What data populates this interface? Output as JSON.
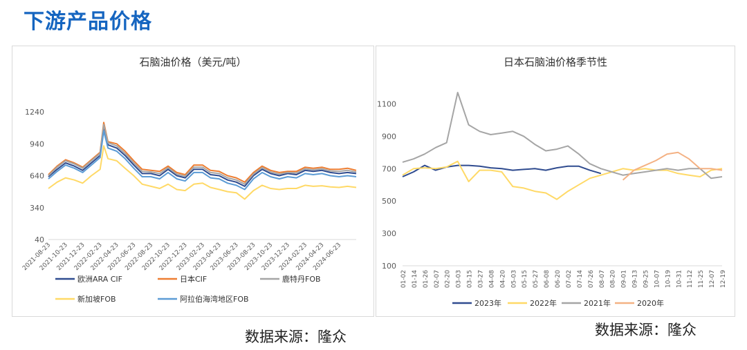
{
  "page": {
    "heading": "下游产品价格"
  },
  "sources": {
    "left": "数据来源：隆众",
    "right": "数据来源：隆众"
  },
  "chart_data": [
    {
      "type": "line",
      "title": "石脑油价格（美元/吨）",
      "xlabel": "",
      "ylabel": "",
      "ylim": [
        40,
        1240
      ],
      "yticks": [
        40,
        340,
        640,
        940,
        1240
      ],
      "xticks": [
        "2021-08-23",
        "2021-10-23",
        "2021-12-23",
        "2022-02-23",
        "2022-04-23",
        "2022-06-23",
        "2022-08-23",
        "2022-10-23",
        "2022-12-23",
        "2023-02-23",
        "2023-04-23",
        "2023-06-23",
        "2023-08-23",
        "2023-10-23",
        "2023-12-23",
        "2024-02-23",
        "2024-04-23",
        "2024-06-23"
      ],
      "legend_position": "bottom",
      "grid": false,
      "x": [
        "2021-08-23",
        "2021-09-23",
        "2021-10-23",
        "2021-11-23",
        "2021-12-23",
        "2022-01-23",
        "2022-02-23",
        "2022-03-08",
        "2022-03-23",
        "2022-04-23",
        "2022-05-23",
        "2022-06-23",
        "2022-07-23",
        "2022-08-23",
        "2022-09-23",
        "2022-10-23",
        "2022-11-23",
        "2022-12-23",
        "2023-01-23",
        "2023-02-23",
        "2023-03-23",
        "2023-04-23",
        "2023-05-23",
        "2023-06-23",
        "2023-07-23",
        "2023-08-23",
        "2023-09-23",
        "2023-10-23",
        "2023-11-23",
        "2023-12-23",
        "2024-01-23",
        "2024-02-23",
        "2024-03-23",
        "2024-04-23",
        "2024-05-23",
        "2024-06-23",
        "2024-07-23",
        "2024-08-23"
      ],
      "series": [
        {
          "name": "欧洲ARA CIF",
          "color": "#2f4b8f",
          "values": [
            630,
            700,
            760,
            730,
            690,
            760,
            830,
            1100,
            930,
            900,
            830,
            740,
            660,
            660,
            640,
            700,
            640,
            620,
            700,
            700,
            650,
            640,
            600,
            580,
            540,
            640,
            700,
            660,
            640,
            660,
            650,
            690,
            680,
            690,
            670,
            660,
            670,
            660
          ]
        },
        {
          "name": "日本CIF",
          "color": "#ed7d31",
          "values": [
            650,
            730,
            790,
            760,
            720,
            790,
            860,
            1140,
            960,
            940,
            870,
            780,
            700,
            690,
            680,
            730,
            670,
            650,
            740,
            740,
            690,
            680,
            640,
            620,
            580,
            670,
            730,
            690,
            670,
            680,
            680,
            720,
            710,
            720,
            700,
            700,
            710,
            690
          ]
        },
        {
          "name": "鹿特丹FOB",
          "color": "#a5a5a5",
          "values": [
            640,
            720,
            780,
            750,
            710,
            780,
            850,
            1120,
            950,
            920,
            850,
            760,
            680,
            675,
            660,
            715,
            655,
            635,
            720,
            720,
            670,
            660,
            620,
            600,
            560,
            655,
            715,
            675,
            655,
            670,
            665,
            705,
            695,
            705,
            685,
            680,
            690,
            675
          ]
        },
        {
          "name": "新加坡FOB",
          "color": "#ffd966",
          "values": [
            520,
            580,
            620,
            600,
            570,
            640,
            700,
            920,
            800,
            780,
            710,
            640,
            560,
            540,
            520,
            560,
            510,
            500,
            560,
            570,
            530,
            510,
            490,
            480,
            420,
            500,
            550,
            520,
            510,
            520,
            520,
            550,
            540,
            545,
            535,
            530,
            540,
            530
          ]
        },
        {
          "name": "阿拉伯海湾地区FOB",
          "color": "#5b9bd5",
          "values": [
            610,
            680,
            740,
            710,
            670,
            740,
            810,
            1060,
            900,
            870,
            800,
            710,
            630,
            630,
            610,
            670,
            610,
            590,
            670,
            670,
            620,
            610,
            570,
            550,
            510,
            610,
            670,
            630,
            610,
            630,
            620,
            660,
            650,
            660,
            640,
            630,
            640,
            630
          ]
        }
      ]
    },
    {
      "type": "line",
      "title": "日本石脑油价格季节性",
      "xlabel": "",
      "ylabel": "",
      "ylim": [
        100,
        1200
      ],
      "yticks": [
        100,
        300,
        500,
        700,
        900,
        1100
      ],
      "categories": [
        "01-02",
        "01-14",
        "01-26",
        "02-07",
        "02-20",
        "03-03",
        "03-15",
        "03-27",
        "04-08",
        "04-20",
        "05-03",
        "05-15",
        "05-27",
        "06-08",
        "06-20",
        "07-02",
        "07-14",
        "07-26",
        "08-07",
        "08-20",
        "09-01",
        "09-13",
        "09-25",
        "10-07",
        "10-19",
        "10-31",
        "11-12",
        "11-25",
        "12-07",
        "12-19"
      ],
      "legend_position": "bottom",
      "grid": false,
      "series": [
        {
          "name": "2023年",
          "color": "#2f4b8f",
          "values": [
            650,
            680,
            720,
            690,
            710,
            720,
            720,
            715,
            705,
            700,
            690,
            695,
            700,
            690,
            705,
            715,
            715,
            690,
            670,
            null,
            null,
            null,
            null,
            null,
            null,
            null,
            null,
            null,
            null,
            null
          ]
        },
        {
          "name": "2022年",
          "color": "#ffd966",
          "values": [
            660,
            700,
            705,
            700,
            710,
            745,
            620,
            690,
            690,
            680,
            590,
            580,
            560,
            550,
            510,
            560,
            600,
            640,
            660,
            680,
            700,
            690,
            700,
            690,
            690,
            670,
            660,
            650,
            690,
            700
          ]
        },
        {
          "name": "2021年",
          "color": "#a5a5a5",
          "values": [
            740,
            760,
            790,
            830,
            860,
            1170,
            970,
            930,
            910,
            920,
            930,
            900,
            850,
            810,
            820,
            840,
            790,
            730,
            700,
            680,
            660,
            670,
            680,
            690,
            700,
            690,
            700,
            700,
            640,
            650
          ]
        },
        {
          "name": "2020年",
          "color": "#f4b183",
          "values": [
            null,
            null,
            null,
            null,
            null,
            null,
            null,
            null,
            null,
            null,
            null,
            null,
            null,
            null,
            null,
            null,
            null,
            null,
            null,
            null,
            630,
            690,
            720,
            750,
            790,
            800,
            760,
            700,
            700,
            690
          ]
        }
      ]
    }
  ]
}
